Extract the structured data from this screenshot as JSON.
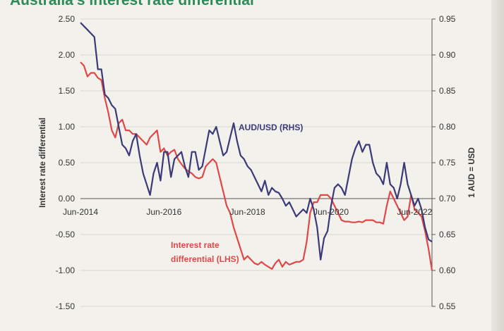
{
  "chart_data": {
    "type": "line",
    "title": "Australia's interest rate differential",
    "ylabel_left": "Interest rate differential",
    "ylabel_right": "1 AUD = USD",
    "ylim_left": [
      -1.5,
      2.5
    ],
    "ylim_right": [
      0.55,
      0.95
    ],
    "left_ticks": [
      "2.50",
      "2.00",
      "1.50",
      "1.00",
      "0.50",
      "0.00",
      "-0.50",
      "-1.00",
      "-1.50"
    ],
    "right_ticks": [
      "0.95",
      "0.90",
      "0.85",
      "0.80",
      "0.75",
      "0.70",
      "0.65",
      "0.60",
      "0.55"
    ],
    "x_range": [
      "2014-06",
      "2022-11"
    ],
    "x_ticks": [
      {
        "label": "Jun-2014",
        "date": "2014-06"
      },
      {
        "label": "Jun-2016",
        "date": "2016-06"
      },
      {
        "label": "Jun-2018",
        "date": "2018-06"
      },
      {
        "label": "Jun-2020",
        "date": "2020-06"
      },
      {
        "label": "Jun-2022",
        "date": "2022-06"
      }
    ],
    "grid": true,
    "series": [
      {
        "name": "AUD/USD (RHS)",
        "axis": "right",
        "color": "#3b3a78",
        "points": [
          [
            "2014-06",
            0.945
          ],
          [
            "2014-08",
            0.935
          ],
          [
            "2014-10",
            0.925
          ],
          [
            "2014-11",
            0.88
          ],
          [
            "2014-12",
            0.88
          ],
          [
            "2015-01",
            0.845
          ],
          [
            "2015-02",
            0.84
          ],
          [
            "2015-03",
            0.83
          ],
          [
            "2015-04",
            0.825
          ],
          [
            "2015-05",
            0.8
          ],
          [
            "2015-06",
            0.775
          ],
          [
            "2015-07",
            0.77
          ],
          [
            "2015-08",
            0.76
          ],
          [
            "2015-09",
            0.78
          ],
          [
            "2015-10",
            0.79
          ],
          [
            "2015-11",
            0.76
          ],
          [
            "2015-12",
            0.735
          ],
          [
            "2016-01",
            0.72
          ],
          [
            "2016-02",
            0.705
          ],
          [
            "2016-03",
            0.735
          ],
          [
            "2016-04",
            0.75
          ],
          [
            "2016-05",
            0.725
          ],
          [
            "2016-06",
            0.765
          ],
          [
            "2016-07",
            0.765
          ],
          [
            "2016-08",
            0.73
          ],
          [
            "2016-09",
            0.755
          ],
          [
            "2016-10",
            0.76
          ],
          [
            "2016-11",
            0.765
          ],
          [
            "2016-12",
            0.745
          ],
          [
            "2017-01",
            0.73
          ],
          [
            "2017-02",
            0.765
          ],
          [
            "2017-03",
            0.765
          ],
          [
            "2017-04",
            0.74
          ],
          [
            "2017-05",
            0.745
          ],
          [
            "2017-06",
            0.77
          ],
          [
            "2017-07",
            0.795
          ],
          [
            "2017-08",
            0.79
          ],
          [
            "2017-09",
            0.8
          ],
          [
            "2017-10",
            0.78
          ],
          [
            "2017-11",
            0.76
          ],
          [
            "2017-12",
            0.765
          ],
          [
            "2018-01",
            0.785
          ],
          [
            "2018-02",
            0.805
          ],
          [
            "2018-03",
            0.78
          ],
          [
            "2018-04",
            0.76
          ],
          [
            "2018-05",
            0.755
          ],
          [
            "2018-06",
            0.745
          ],
          [
            "2018-07",
            0.74
          ],
          [
            "2018-08",
            0.73
          ],
          [
            "2018-09",
            0.72
          ],
          [
            "2018-10",
            0.71
          ],
          [
            "2018-11",
            0.725
          ],
          [
            "2018-12",
            0.705
          ],
          [
            "2019-01",
            0.715
          ],
          [
            "2019-02",
            0.71
          ],
          [
            "2019-03",
            0.708
          ],
          [
            "2019-04",
            0.7
          ],
          [
            "2019-05",
            0.69
          ],
          [
            "2019-06",
            0.695
          ],
          [
            "2019-07",
            0.685
          ],
          [
            "2019-08",
            0.675
          ],
          [
            "2019-09",
            0.68
          ],
          [
            "2019-10",
            0.685
          ],
          [
            "2019-11",
            0.68
          ],
          [
            "2019-12",
            0.7
          ],
          [
            "2020-01",
            0.685
          ],
          [
            "2020-02",
            0.66
          ],
          [
            "2020-03",
            0.615
          ],
          [
            "2020-04",
            0.645
          ],
          [
            "2020-05",
            0.655
          ],
          [
            "2020-06",
            0.69
          ],
          [
            "2020-07",
            0.715
          ],
          [
            "2020-08",
            0.72
          ],
          [
            "2020-09",
            0.715
          ],
          [
            "2020-10",
            0.705
          ],
          [
            "2020-11",
            0.73
          ],
          [
            "2020-12",
            0.755
          ],
          [
            "2021-01",
            0.77
          ],
          [
            "2021-02",
            0.78
          ],
          [
            "2021-03",
            0.765
          ],
          [
            "2021-04",
            0.775
          ],
          [
            "2021-05",
            0.775
          ],
          [
            "2021-06",
            0.75
          ],
          [
            "2021-07",
            0.735
          ],
          [
            "2021-08",
            0.73
          ],
          [
            "2021-09",
            0.72
          ],
          [
            "2021-10",
            0.75
          ],
          [
            "2021-11",
            0.72
          ],
          [
            "2021-12",
            0.715
          ],
          [
            "2022-01",
            0.7
          ],
          [
            "2022-02",
            0.72
          ],
          [
            "2022-03",
            0.75
          ],
          [
            "2022-04",
            0.72
          ],
          [
            "2022-05",
            0.705
          ],
          [
            "2022-06",
            0.69
          ],
          [
            "2022-07",
            0.7
          ],
          [
            "2022-08",
            0.685
          ],
          [
            "2022-09",
            0.66
          ],
          [
            "2022-10",
            0.643
          ],
          [
            "2022-11",
            0.64
          ]
        ]
      },
      {
        "name": "Interest rate differential (LHS)",
        "axis": "left",
        "color": "#e04848",
        "points": [
          [
            "2014-06",
            1.9
          ],
          [
            "2014-07",
            1.85
          ],
          [
            "2014-08",
            1.7
          ],
          [
            "2014-09",
            1.75
          ],
          [
            "2014-10",
            1.75
          ],
          [
            "2014-11",
            1.68
          ],
          [
            "2014-12",
            1.65
          ],
          [
            "2015-01",
            1.4
          ],
          [
            "2015-02",
            1.2
          ],
          [
            "2015-03",
            0.95
          ],
          [
            "2015-04",
            0.85
          ],
          [
            "2015-05",
            1.05
          ],
          [
            "2015-06",
            1.1
          ],
          [
            "2015-07",
            0.95
          ],
          [
            "2015-08",
            0.95
          ],
          [
            "2015-09",
            0.9
          ],
          [
            "2015-10",
            0.9
          ],
          [
            "2015-11",
            0.85
          ],
          [
            "2015-12",
            0.8
          ],
          [
            "2016-01",
            0.75
          ],
          [
            "2016-02",
            0.85
          ],
          [
            "2016-03",
            0.9
          ],
          [
            "2016-04",
            0.95
          ],
          [
            "2016-05",
            0.65
          ],
          [
            "2016-06",
            0.7
          ],
          [
            "2016-07",
            0.6
          ],
          [
            "2016-08",
            0.65
          ],
          [
            "2016-09",
            0.68
          ],
          [
            "2016-10",
            0.55
          ],
          [
            "2016-11",
            0.48
          ],
          [
            "2016-12",
            0.42
          ],
          [
            "2017-01",
            0.38
          ],
          [
            "2017-02",
            0.35
          ],
          [
            "2017-03",
            0.3
          ],
          [
            "2017-04",
            0.28
          ],
          [
            "2017-05",
            0.3
          ],
          [
            "2017-06",
            0.45
          ],
          [
            "2017-07",
            0.5
          ],
          [
            "2017-08",
            0.55
          ],
          [
            "2017-09",
            0.5
          ],
          [
            "2017-10",
            0.3
          ],
          [
            "2017-11",
            0.1
          ],
          [
            "2017-12",
            -0.1
          ],
          [
            "2018-01",
            -0.2
          ],
          [
            "2018-02",
            -0.4
          ],
          [
            "2018-03",
            -0.55
          ],
          [
            "2018-04",
            -0.7
          ],
          [
            "2018-05",
            -0.85
          ],
          [
            "2018-06",
            -0.8
          ],
          [
            "2018-07",
            -0.85
          ],
          [
            "2018-08",
            -0.9
          ],
          [
            "2018-09",
            -0.92
          ],
          [
            "2018-10",
            -0.88
          ],
          [
            "2018-11",
            -0.92
          ],
          [
            "2018-12",
            -0.95
          ],
          [
            "2019-01",
            -0.98
          ],
          [
            "2019-02",
            -0.9
          ],
          [
            "2019-03",
            -0.85
          ],
          [
            "2019-04",
            -0.95
          ],
          [
            "2019-05",
            -0.88
          ],
          [
            "2019-06",
            -0.92
          ],
          [
            "2019-07",
            -0.9
          ],
          [
            "2019-08",
            -0.88
          ],
          [
            "2019-09",
            -0.88
          ],
          [
            "2019-10",
            -0.85
          ],
          [
            "2019-11",
            -0.6
          ],
          [
            "2019-12",
            -0.2
          ],
          [
            "2020-01",
            -0.05
          ],
          [
            "2020-02",
            -0.05
          ],
          [
            "2020-03",
            0.05
          ],
          [
            "2020-04",
            0.05
          ],
          [
            "2020-05",
            0.05
          ],
          [
            "2020-06",
            0.0
          ],
          [
            "2020-07",
            -0.1
          ],
          [
            "2020-08",
            -0.2
          ],
          [
            "2020-09",
            -0.3
          ],
          [
            "2020-10",
            -0.32
          ],
          [
            "2020-11",
            -0.32
          ],
          [
            "2020-12",
            -0.33
          ],
          [
            "2021-01",
            -0.33
          ],
          [
            "2021-02",
            -0.32
          ],
          [
            "2021-03",
            -0.33
          ],
          [
            "2021-04",
            -0.3
          ],
          [
            "2021-05",
            -0.3
          ],
          [
            "2021-06",
            -0.3
          ],
          [
            "2021-07",
            -0.33
          ],
          [
            "2021-08",
            -0.33
          ],
          [
            "2021-09",
            -0.35
          ],
          [
            "2021-10",
            -0.1
          ],
          [
            "2021-11",
            0.1
          ],
          [
            "2021-12",
            0.0
          ],
          [
            "2022-01",
            -0.1
          ],
          [
            "2022-02",
            -0.2
          ],
          [
            "2022-03",
            -0.3
          ],
          [
            "2022-04",
            -0.25
          ],
          [
            "2022-05",
            0.05
          ],
          [
            "2022-06",
            -0.15
          ],
          [
            "2022-07",
            -0.2
          ],
          [
            "2022-08",
            -0.25
          ],
          [
            "2022-09",
            -0.45
          ],
          [
            "2022-10",
            -0.7
          ],
          [
            "2022-11",
            -1.0
          ]
        ]
      }
    ]
  }
}
